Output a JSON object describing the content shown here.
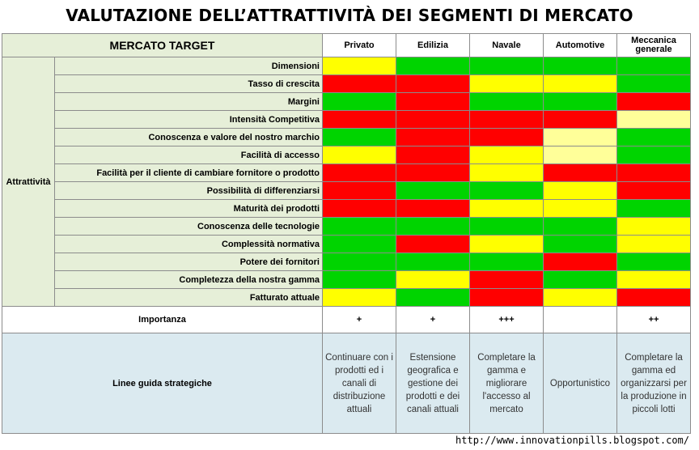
{
  "title": "VALUTAZIONE DELL’ATTRATTIVITÀ DEI SEGMENTI DI MERCATO",
  "header": {
    "market_target": "MERCATO TARGET",
    "columns": [
      "Privato",
      "Edilizia",
      "Navale",
      "Automotive",
      "Meccanica generale"
    ]
  },
  "attractiveness_label": "Attrattività",
  "criteria": [
    {
      "label": "Dimensioni",
      "cells": [
        "yellow",
        "green",
        "green",
        "green",
        "green"
      ]
    },
    {
      "label": "Tasso di crescita",
      "cells": [
        "red",
        "red",
        "yellow",
        "yellow",
        "green"
      ]
    },
    {
      "label": "Margini",
      "cells": [
        "green",
        "red",
        "green",
        "green",
        "red"
      ]
    },
    {
      "label": "Intensità Competitiva",
      "cells": [
        "red",
        "red",
        "red",
        "red",
        "lightyellow"
      ]
    },
    {
      "label": "Conoscenza e valore del nostro marchio",
      "cells": [
        "green",
        "red",
        "red",
        "lightyellow",
        "green"
      ]
    },
    {
      "label": "Facilità di accesso",
      "cells": [
        "yellow",
        "red",
        "yellow",
        "lightyellow",
        "green"
      ]
    },
    {
      "label": "Facilità per il cliente di cambiare fornitore o prodotto",
      "cells": [
        "red",
        "red",
        "yellow",
        "red",
        "red"
      ]
    },
    {
      "label": "Possibilità di differenziarsi",
      "cells": [
        "red",
        "green",
        "green",
        "yellow",
        "red"
      ]
    },
    {
      "label": "Maturità dei prodotti",
      "cells": [
        "red",
        "red",
        "yellow",
        "yellow",
        "green"
      ]
    },
    {
      "label": "Conoscenza delle tecnologie",
      "cells": [
        "green",
        "green",
        "green",
        "green",
        "yellow"
      ]
    },
    {
      "label": "Complessità normativa",
      "cells": [
        "green",
        "red",
        "yellow",
        "green",
        "yellow"
      ]
    },
    {
      "label": "Potere dei fornitori",
      "cells": [
        "green",
        "green",
        "green",
        "red",
        "green"
      ]
    },
    {
      "label": "Completezza della nostra gamma",
      "cells": [
        "green",
        "yellow",
        "red",
        "green",
        "yellow"
      ]
    },
    {
      "label": "Fatturato attuale",
      "cells": [
        "yellow",
        "green",
        "red",
        "yellow",
        "red"
      ]
    }
  ],
  "importance": {
    "label": "Importanza",
    "values": [
      "+",
      "+",
      "+++",
      "",
      "++"
    ]
  },
  "guidelines": {
    "label": "Linee guida strategiche",
    "values": [
      "Continuare con i prodotti ed i canali di distribuzione attuali",
      "Estensione geografica e gestione dei prodotti e dei canali attuali",
      "Completare la gamma e migliorare l'accesso al mercato",
      "Opportunistico",
      "Completare la gamma ed organizzarsi per la produzione in piccoli lotti"
    ]
  },
  "colors": {
    "green": "#00d400",
    "red": "#ff0000",
    "yellow": "#ffff00",
    "lightyellow": "#ffff99",
    "label_bg": "#e6efd8",
    "guide_bg": "#dbeaf0"
  },
  "footer_url": "http://www.innovationpills.blogspot.com/"
}
